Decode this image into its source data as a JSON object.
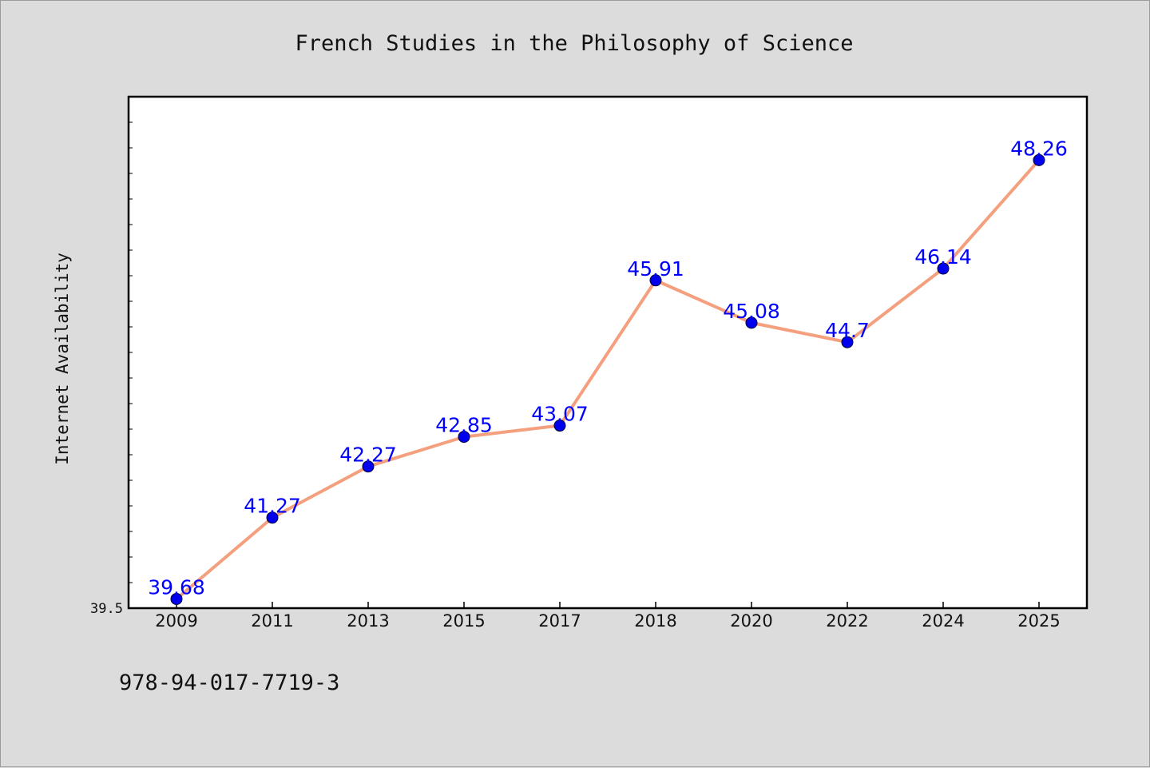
{
  "chart_data": {
    "type": "line",
    "title": "French Studies in the Philosophy of Science",
    "xlabel": "",
    "ylabel": "Internet Availability",
    "categories": [
      "2009",
      "2011",
      "2013",
      "2015",
      "2017",
      "2018",
      "2020",
      "2022",
      "2024",
      "2025"
    ],
    "series": [
      {
        "values": [
          39.68,
          41.27,
          42.27,
          42.85,
          43.07,
          45.91,
          45.08,
          44.7,
          46.14,
          48.26
        ],
        "labels": [
          "39.68",
          "41.27",
          "42.27",
          "42.85",
          "43.07",
          "45.91",
          "45.08",
          "44.7",
          "46.14",
          "48.26"
        ]
      }
    ],
    "ylim": [
      39.5,
      49.5
    ],
    "yticks": [
      {
        "value": 39.5,
        "label": "39.5"
      }
    ],
    "grid": false,
    "legend": "none"
  },
  "footer": {
    "text": "978-94-017-7719-3"
  },
  "colors": {
    "background": "#dcdcdc",
    "plot_bg": "#ffffff",
    "axes": "#000000",
    "line": "#f4a07e",
    "marker": "#0000ee",
    "label": "#0000ff"
  }
}
